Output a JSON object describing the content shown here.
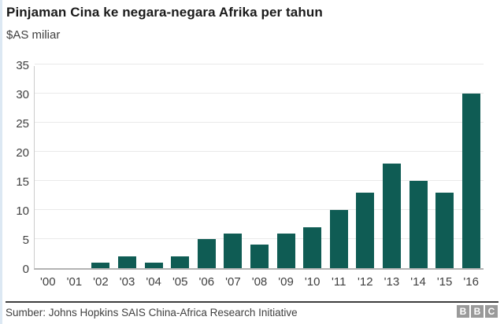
{
  "header": {
    "title": "Pinjaman Cina ke negara-negara Afrika per tahun",
    "subtitle": "$AS miliar"
  },
  "chart_data": {
    "type": "bar",
    "title": "Pinjaman Cina ke negara-negara Afrika per tahun",
    "xlabel": "",
    "ylabel": "$AS miliar",
    "categories": [
      "'00",
      "'01",
      "'02",
      "'03",
      "'04",
      "'05",
      "'06",
      "'07",
      "'08",
      "'09",
      "'10",
      "'11",
      "'12",
      "'13",
      "'14",
      "'15",
      "'16"
    ],
    "values": [
      0,
      0,
      1,
      2,
      1,
      2,
      5,
      6,
      4,
      6,
      7,
      10,
      13,
      18,
      15,
      13,
      30
    ],
    "ylim": [
      0,
      35
    ],
    "yticks": [
      0,
      5,
      10,
      15,
      20,
      25,
      30,
      35
    ],
    "grid": true,
    "legend": null,
    "bar_color": "#0f5c54"
  },
  "colors": {
    "bar": "#0f5c54",
    "gridline": "#e9e9e9",
    "axis_baseline": "#b3b3b3",
    "axis_left": "#cccccc",
    "text": "#404040",
    "title_text": "#1a1a1a",
    "logo_box": "#9a9a9a",
    "footer_rule": "#3d3d3d"
  },
  "footer": {
    "source": "Sumber: Johns Hopkins SAIS China-Africa Research Initiative",
    "logo_letters": [
      "B",
      "B",
      "C"
    ]
  }
}
